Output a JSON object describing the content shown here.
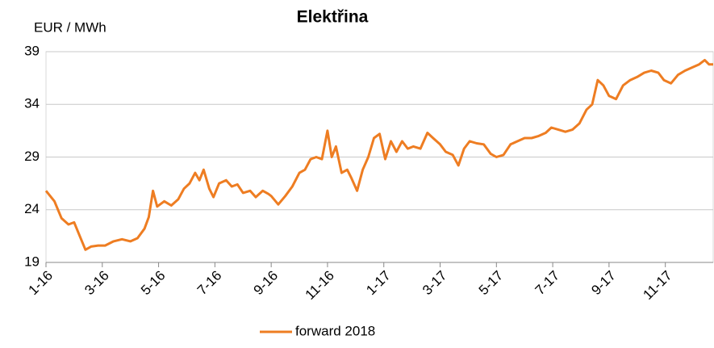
{
  "chart_data": {
    "type": "line",
    "title": "Elektřina",
    "ylabel": "EUR / MWh",
    "x": [
      0,
      0.3,
      0.55,
      0.8,
      1.0,
      1.2,
      1.4,
      1.6,
      1.85,
      2.1,
      2.4,
      2.7,
      3.0,
      3.25,
      3.5,
      3.65,
      3.8,
      3.95,
      4.2,
      4.45,
      4.7,
      4.9,
      5.1,
      5.3,
      5.45,
      5.6,
      5.8,
      5.95,
      6.15,
      6.4,
      6.6,
      6.8,
      7.0,
      7.25,
      7.45,
      7.7,
      7.9,
      8.0,
      8.25,
      8.5,
      8.75,
      9.0,
      9.2,
      9.4,
      9.6,
      9.8,
      10.0,
      10.15,
      10.3,
      10.5,
      10.7,
      10.85,
      11.05,
      11.25,
      11.45,
      11.65,
      11.85,
      12.05,
      12.25,
      12.45,
      12.65,
      12.85,
      13.05,
      13.3,
      13.55,
      13.75,
      14.0,
      14.2,
      14.45,
      14.65,
      14.85,
      15.05,
      15.3,
      15.55,
      15.8,
      16.0,
      16.25,
      16.5,
      16.75,
      17.0,
      17.25,
      17.5,
      17.75,
      17.95,
      18.2,
      18.45,
      18.7,
      18.95,
      19.2,
      19.4,
      19.6,
      19.8,
      20.0,
      20.25,
      20.5,
      20.75,
      21.0,
      21.25,
      21.5,
      21.75,
      21.95,
      22.2,
      22.45,
      22.7,
      22.95,
      23.2,
      23.4,
      23.55,
      23.7
    ],
    "series": [
      {
        "name": "forward 2018",
        "color": "#ee7d22",
        "values": [
          25.8,
          24.8,
          23.2,
          22.6,
          22.8,
          21.5,
          20.2,
          20.5,
          20.6,
          20.6,
          21.0,
          21.2,
          21.0,
          21.3,
          22.2,
          23.3,
          25.8,
          24.3,
          24.8,
          24.4,
          25.0,
          26.0,
          26.5,
          27.5,
          26.8,
          27.8,
          26.0,
          25.2,
          26.5,
          26.8,
          26.2,
          26.4,
          25.6,
          25.8,
          25.2,
          25.8,
          25.5,
          25.3,
          24.5,
          25.3,
          26.2,
          27.5,
          27.8,
          28.8,
          29.0,
          28.8,
          31.5,
          29.0,
          30.0,
          27.5,
          27.8,
          27.0,
          25.8,
          27.8,
          29.0,
          30.8,
          31.2,
          28.8,
          30.5,
          29.5,
          30.5,
          29.8,
          30.0,
          29.8,
          31.3,
          30.8,
          30.2,
          29.5,
          29.2,
          28.2,
          29.8,
          30.5,
          30.3,
          30.2,
          29.3,
          29.0,
          29.2,
          30.2,
          30.5,
          30.8,
          30.8,
          31.0,
          31.3,
          31.8,
          31.6,
          31.4,
          31.6,
          32.2,
          33.5,
          34.0,
          36.3,
          35.8,
          34.8,
          34.5,
          35.8,
          36.3,
          36.6,
          37.0,
          37.2,
          37.0,
          36.3,
          36.0,
          36.8,
          37.2,
          37.5,
          37.8,
          38.2,
          37.8,
          37.8
        ]
      }
    ],
    "xlim": [
      0,
      23.7
    ],
    "xticks": [
      {
        "value": 0,
        "label": "1-16"
      },
      {
        "value": 2,
        "label": "3-16"
      },
      {
        "value": 4,
        "label": "5-16"
      },
      {
        "value": 6,
        "label": "7-16"
      },
      {
        "value": 8,
        "label": "9-16"
      },
      {
        "value": 10,
        "label": "11-16"
      },
      {
        "value": 12,
        "label": "1-17"
      },
      {
        "value": 14,
        "label": "3-17"
      },
      {
        "value": 16,
        "label": "5-17"
      },
      {
        "value": 18,
        "label": "7-17"
      },
      {
        "value": 20,
        "label": "9-17"
      },
      {
        "value": 22,
        "label": "11-17"
      }
    ],
    "ylim": [
      19,
      39
    ],
    "yticks": [
      19,
      24,
      29,
      34,
      39
    ],
    "grid": true
  }
}
